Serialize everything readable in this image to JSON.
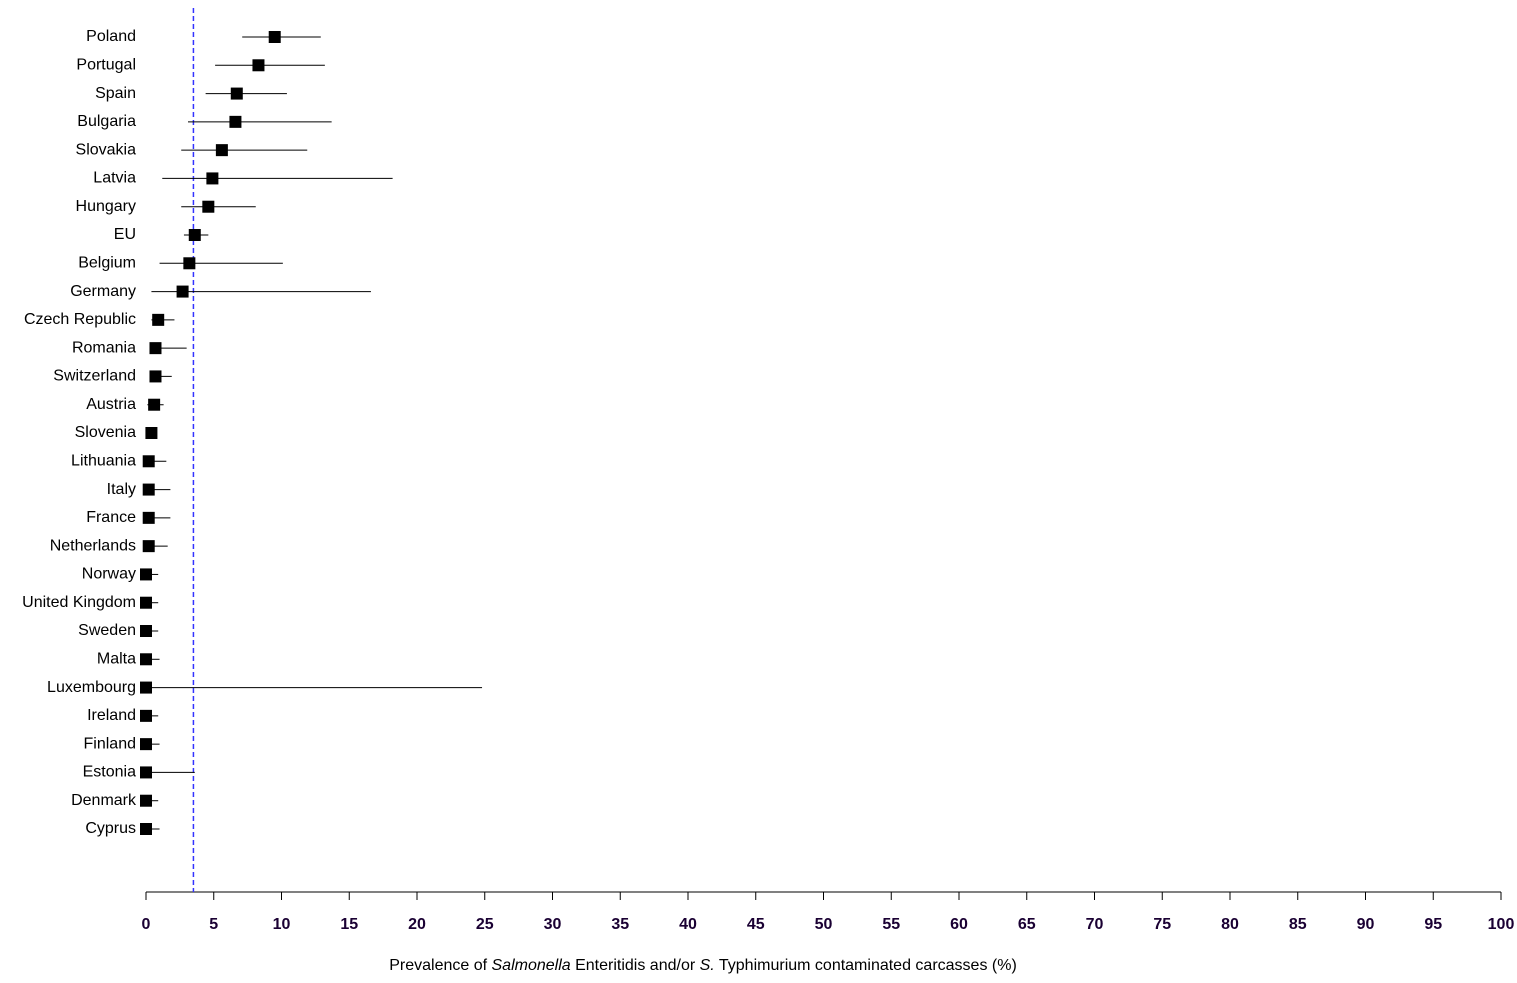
{
  "chart_data": {
    "type": "forest",
    "xlabel": [
      "Prevalence of ",
      "Salmonella",
      " Enteritidis and/or ",
      "S.",
      " Typhimurium contaminated carcasses (%)"
    ],
    "xlabel_italic": [
      false,
      true,
      false,
      true,
      false
    ],
    "categories": [
      "Poland",
      "Portugal",
      "Spain",
      "Bulgaria",
      "Slovakia",
      "Latvia",
      "Hungary",
      "EU",
      "Belgium",
      "Germany",
      "Czech Republic",
      "Romania",
      "Switzerland",
      "Austria",
      "Slovenia",
      "Lithuania",
      "Italy",
      "France",
      "Netherlands",
      "Norway",
      "United Kingdom",
      "Sweden",
      "Malta",
      "Luxembourg",
      "Ireland",
      "Finland",
      "Estonia",
      "Denmark",
      "Cyprus"
    ],
    "values": [
      9.5,
      8.3,
      6.7,
      6.6,
      5.6,
      4.9,
      4.6,
      3.6,
      3.2,
      2.7,
      0.9,
      0.7,
      0.7,
      0.6,
      0.4,
      0.2,
      0.2,
      0.2,
      0.2,
      0,
      0,
      0,
      0,
      0,
      0,
      0,
      0,
      0,
      0
    ],
    "lower": [
      7.1,
      5.1,
      4.4,
      3.1,
      2.6,
      1.2,
      2.6,
      2.8,
      1.0,
      0.4,
      0.4,
      0.3,
      0.3,
      0.1,
      0.2,
      0,
      0,
      0,
      0,
      0,
      0,
      0,
      0,
      0,
      0,
      0,
      0,
      0,
      0
    ],
    "upper": [
      12.9,
      13.2,
      10.4,
      13.7,
      11.9,
      18.2,
      8.1,
      4.6,
      10.1,
      16.6,
      2.1,
      3.0,
      1.9,
      1.3,
      0.6,
      1.5,
      1.8,
      1.8,
      1.6,
      0.9,
      0.9,
      0.9,
      1.0,
      24.8,
      0.9,
      1.0,
      3.6,
      0.9,
      1.0
    ],
    "color": "#000000",
    "reference_line": 3.5,
    "reference_color": "#3333ff",
    "xlim": [
      0,
      100
    ],
    "xticks": [
      0,
      5,
      10,
      15,
      20,
      25,
      30,
      35,
      40,
      45,
      50,
      55,
      60,
      65,
      70,
      75,
      80,
      85,
      90,
      95,
      100
    ],
    "tick_color": "#1a0033"
  }
}
